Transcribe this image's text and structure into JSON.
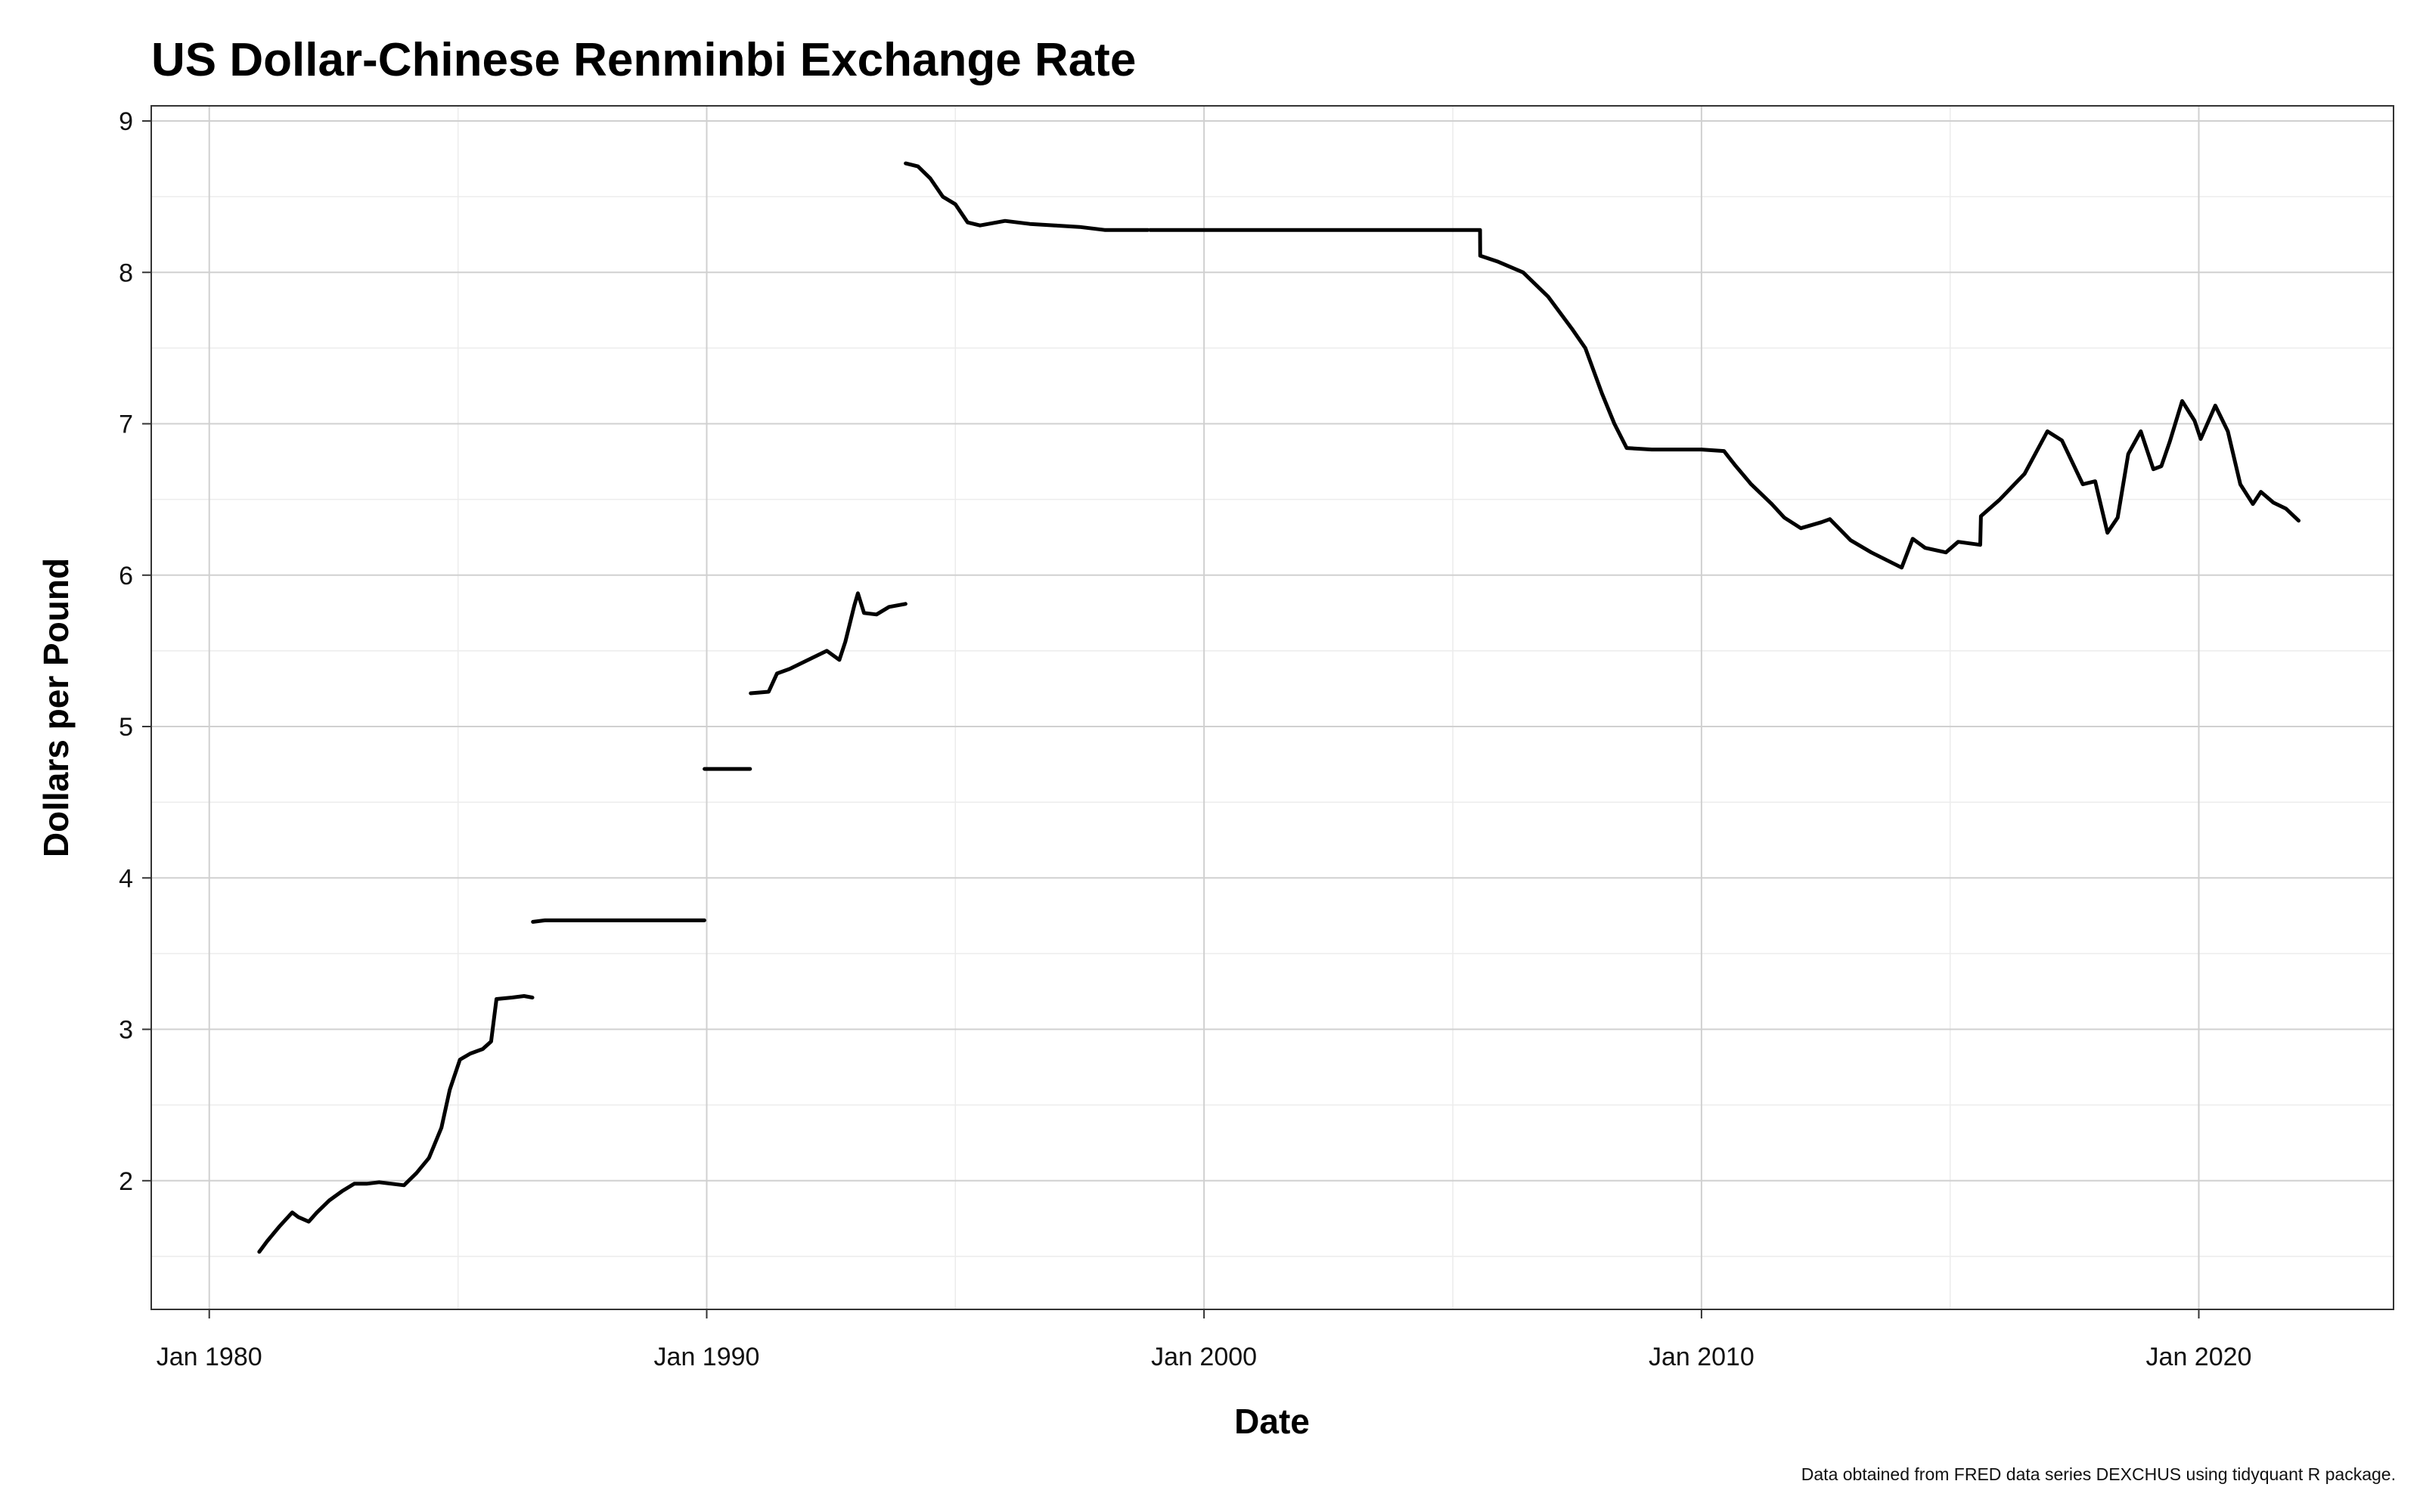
{
  "chart_data": {
    "type": "line",
    "title": "US Dollar-Chinese Renminbi Exchange Rate",
    "xlabel": "Date",
    "ylabel": "Dollars per Pound",
    "caption": "Data obtained from FRED data series DEXCHUS using tidyquant R package.",
    "xlim": [
      "1978-11-01",
      "2023-12-01"
    ],
    "ylim": [
      1.15,
      9.1
    ],
    "grid": true,
    "legend": "none",
    "line_color": "#000000",
    "x_ticks": [
      {
        "date": "1980-01-01",
        "label": "Jan 1980"
      },
      {
        "date": "1990-01-01",
        "label": "Jan 1990"
      },
      {
        "date": "2000-01-01",
        "label": "Jan 2000"
      },
      {
        "date": "2010-01-01",
        "label": "Jan 2010"
      },
      {
        "date": "2020-01-01",
        "label": "Jan 2020"
      }
    ],
    "x_minor_ticks": [
      "1985-01-01",
      "1995-01-01",
      "2005-01-01",
      "2015-01-01"
    ],
    "y_ticks": [
      2,
      3,
      4,
      5,
      6,
      7,
      8,
      9
    ],
    "series": [
      {
        "segments": [
          [
            [
              "1981-01-02",
              1.53
            ],
            [
              "1981-03-01",
              1.6
            ],
            [
              "1981-06-01",
              1.7
            ],
            [
              "1981-09-01",
              1.79
            ],
            [
              "1981-10-15",
              1.76
            ],
            [
              "1982-01-01",
              1.73
            ],
            [
              "1982-03-01",
              1.79
            ],
            [
              "1982-06-01",
              1.87
            ],
            [
              "1982-09-01",
              1.93
            ],
            [
              "1982-12-01",
              1.98
            ],
            [
              "1983-03-01",
              1.98
            ],
            [
              "1983-06-01",
              1.99
            ],
            [
              "1983-09-01",
              1.98
            ],
            [
              "1983-12-01",
              1.97
            ],
            [
              "1984-03-01",
              2.05
            ],
            [
              "1984-06-01",
              2.15
            ],
            [
              "1984-09-01",
              2.35
            ],
            [
              "1984-11-01",
              2.6
            ],
            [
              "1985-01-15",
              2.8
            ],
            [
              "1985-04-01",
              2.84
            ],
            [
              "1985-07-01",
              2.87
            ],
            [
              "1985-09-01",
              2.92
            ],
            [
              "1985-10-10",
              3.2
            ],
            [
              "1986-02-01",
              3.21
            ],
            [
              "1986-05-01",
              3.22
            ],
            [
              "1986-07-01",
              3.21
            ]
          ],
          [
            [
              "1986-07-05",
              3.71
            ],
            [
              "1986-10-01",
              3.72
            ],
            [
              "1987-06-01",
              3.72
            ],
            [
              "1988-06-01",
              3.72
            ],
            [
              "1989-06-01",
              3.72
            ],
            [
              "1989-12-15",
              3.72
            ]
          ],
          [
            [
              "1989-12-16",
              4.72
            ],
            [
              "1990-06-01",
              4.72
            ],
            [
              "1990-11-15",
              4.72
            ]
          ],
          [
            [
              "1990-11-20",
              5.22
            ],
            [
              "1991-04-01",
              5.23
            ],
            [
              "1991-06-01",
              5.35
            ],
            [
              "1991-09-01",
              5.38
            ],
            [
              "1991-12-01",
              5.42
            ],
            [
              "1992-03-01",
              5.46
            ],
            [
              "1992-06-01",
              5.5
            ],
            [
              "1992-09-01",
              5.44
            ],
            [
              "1992-10-15",
              5.56
            ],
            [
              "1992-12-20",
              5.8
            ],
            [
              "1993-01-15",
              5.88
            ],
            [
              "1993-03-01",
              5.75
            ],
            [
              "1993-06-01",
              5.74
            ],
            [
              "1993-09-01",
              5.79
            ],
            [
              "1993-12-31",
              5.81
            ]
          ],
          [
            [
              "1994-01-01",
              8.72
            ],
            [
              "1994-04-01",
              8.7
            ],
            [
              "1994-07-01",
              8.62
            ],
            [
              "1994-10-01",
              8.5
            ],
            [
              "1995-01-01",
              8.45
            ],
            [
              "1995-04-01",
              8.33
            ],
            [
              "1995-07-01",
              8.31
            ],
            [
              "1996-01-01",
              8.34
            ],
            [
              "1996-07-01",
              8.32
            ],
            [
              "1997-01-01",
              8.31
            ],
            [
              "1997-07-01",
              8.3
            ],
            [
              "1998-01-01",
              8.28
            ],
            [
              "1998-11-15",
              8.28
            ]
          ],
          [
            [
              "1998-12-01",
              8.28
            ],
            [
              "2000-01-01",
              8.28
            ],
            [
              "2002-01-01",
              8.28
            ],
            [
              "2004-01-01",
              8.28
            ],
            [
              "2005-07-20",
              8.28
            ],
            [
              "2005-07-21",
              8.11
            ],
            [
              "2005-12-01",
              8.07
            ],
            [
              "2006-06-01",
              8.0
            ],
            [
              "2006-12-01",
              7.84
            ],
            [
              "2007-06-01",
              7.62
            ],
            [
              "2007-09-01",
              7.5
            ],
            [
              "2008-01-01",
              7.2
            ],
            [
              "2008-04-01",
              7.0
            ],
            [
              "2008-07-01",
              6.84
            ],
            [
              "2009-01-01",
              6.83
            ],
            [
              "2009-07-01",
              6.83
            ],
            [
              "2010-01-01",
              6.83
            ],
            [
              "2010-06-15",
              6.82
            ],
            [
              "2010-09-01",
              6.73
            ],
            [
              "2011-01-01",
              6.6
            ],
            [
              "2011-06-01",
              6.47
            ],
            [
              "2011-09-01",
              6.38
            ],
            [
              "2012-01-01",
              6.31
            ],
            [
              "2012-06-01",
              6.35
            ],
            [
              "2012-08-01",
              6.37
            ],
            [
              "2013-01-01",
              6.23
            ],
            [
              "2013-06-01",
              6.15
            ],
            [
              "2014-01-10",
              6.05
            ],
            [
              "2014-04-01",
              6.24
            ],
            [
              "2014-07-01",
              6.18
            ],
            [
              "2014-12-01",
              6.15
            ],
            [
              "2015-03-01",
              6.22
            ],
            [
              "2015-08-10",
              6.2
            ],
            [
              "2015-08-15",
              6.39
            ],
            [
              "2016-01-01",
              6.5
            ],
            [
              "2016-07-01",
              6.67
            ],
            [
              "2016-12-15",
              6.95
            ],
            [
              "2017-04-01",
              6.89
            ],
            [
              "2017-09-01",
              6.6
            ],
            [
              "2017-12-01",
              6.62
            ],
            [
              "2018-03-01",
              6.28
            ],
            [
              "2018-05-15",
              6.38
            ],
            [
              "2018-08-01",
              6.8
            ],
            [
              "2018-11-01",
              6.95
            ],
            [
              "2019-02-01",
              6.7
            ],
            [
              "2019-04-01",
              6.72
            ],
            [
              "2019-06-01",
              6.88
            ],
            [
              "2019-09-01",
              7.15
            ],
            [
              "2019-12-01",
              7.02
            ],
            [
              "2020-01-15",
              6.9
            ],
            [
              "2020-05-01",
              7.12
            ],
            [
              "2020-08-01",
              6.95
            ],
            [
              "2020-11-01",
              6.6
            ],
            [
              "2021-02-01",
              6.47
            ],
            [
              "2021-04-01",
              6.55
            ],
            [
              "2021-07-01",
              6.48
            ],
            [
              "2021-10-01",
              6.44
            ],
            [
              "2022-01-03",
              6.36
            ]
          ]
        ]
      }
    ]
  }
}
